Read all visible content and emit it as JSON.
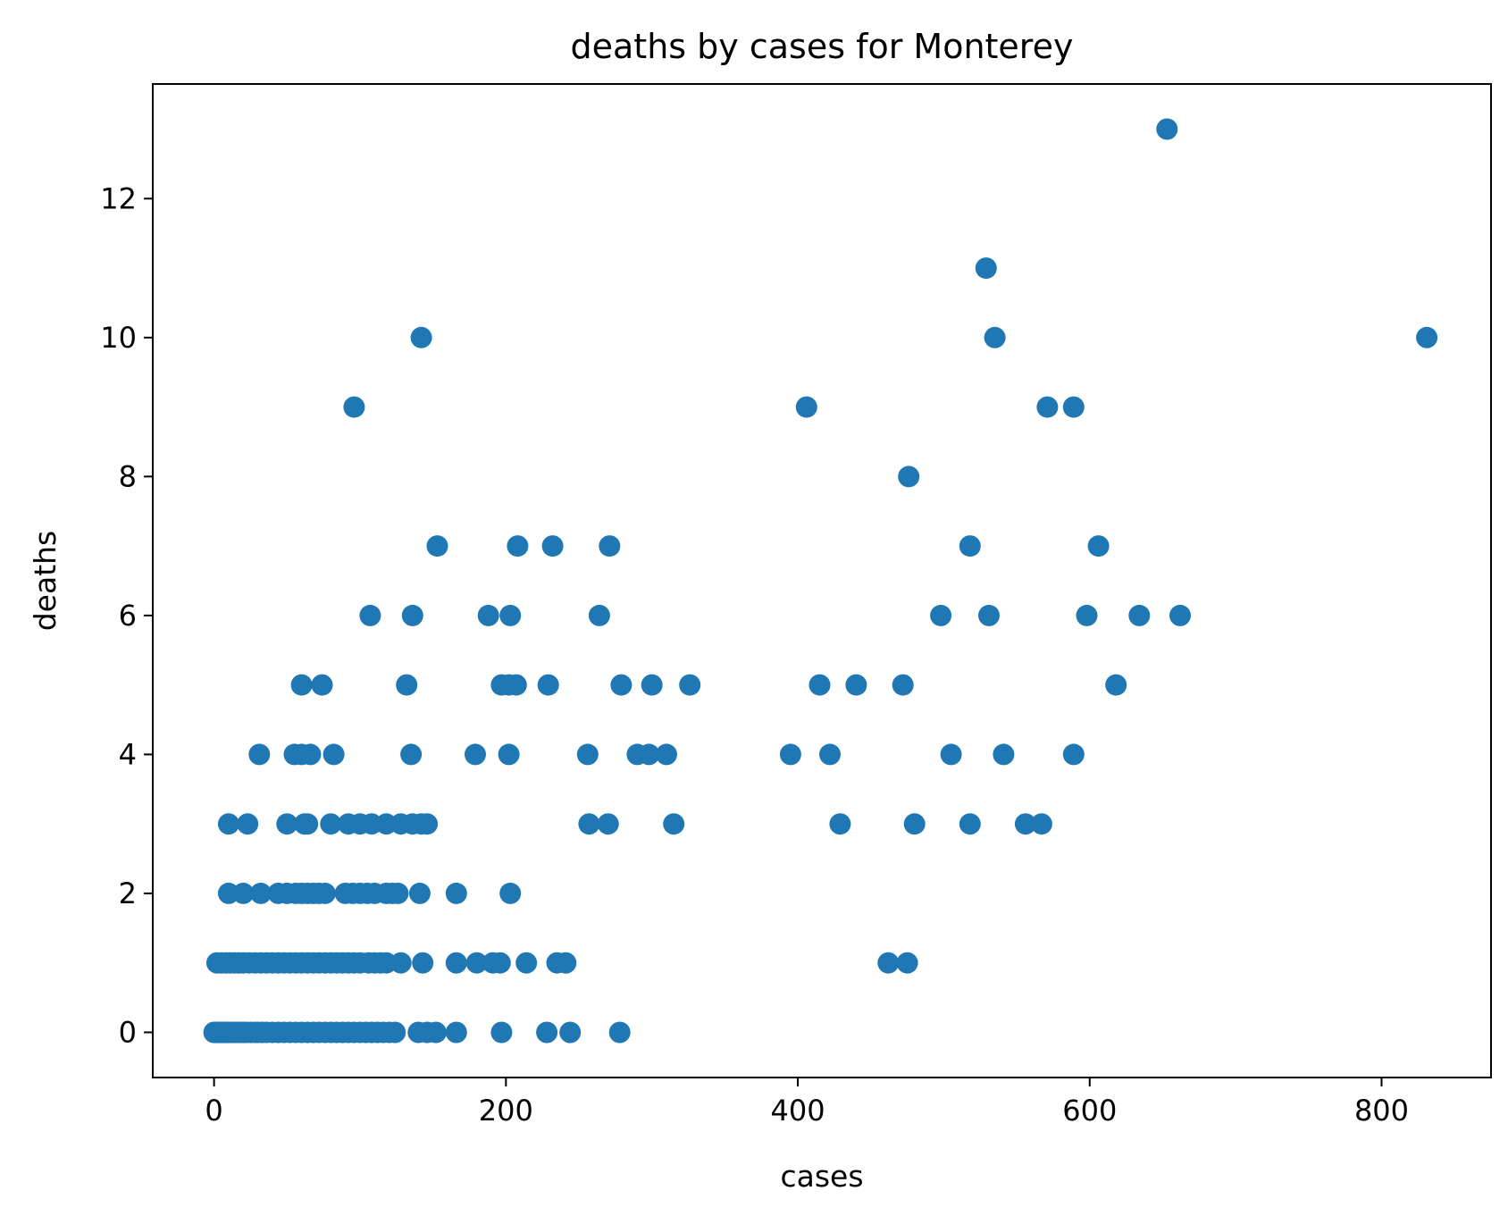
{
  "chart_data": {
    "type": "scatter",
    "title": "deaths by cases for Monterey",
    "xlabel": "cases",
    "ylabel": "deaths",
    "xlim": [
      -42,
      875
    ],
    "ylim": [
      -0.65,
      13.65
    ],
    "xticks": [
      0,
      200,
      400,
      600,
      800
    ],
    "yticks": [
      0,
      2,
      4,
      6,
      8,
      10,
      12
    ],
    "grid": false,
    "color": "#1f77b4",
    "series": [
      {
        "points": [
          [
            0,
            0
          ],
          [
            1,
            0
          ],
          [
            2,
            0
          ],
          [
            3,
            0
          ],
          [
            4,
            0
          ],
          [
            5,
            0
          ],
          [
            6,
            0
          ],
          [
            7,
            0
          ],
          [
            8,
            0
          ],
          [
            10,
            0
          ],
          [
            12,
            0
          ],
          [
            14,
            0
          ],
          [
            16,
            0
          ],
          [
            18,
            0
          ],
          [
            20,
            0
          ],
          [
            22,
            0
          ],
          [
            25,
            0
          ],
          [
            28,
            0
          ],
          [
            30,
            0
          ],
          [
            33,
            0
          ],
          [
            36,
            0
          ],
          [
            40,
            0
          ],
          [
            44,
            0
          ],
          [
            48,
            0
          ],
          [
            52,
            0
          ],
          [
            56,
            0
          ],
          [
            60,
            0
          ],
          [
            64,
            0
          ],
          [
            68,
            0
          ],
          [
            72,
            0
          ],
          [
            76,
            0
          ],
          [
            80,
            0
          ],
          [
            84,
            0
          ],
          [
            88,
            0
          ],
          [
            92,
            0
          ],
          [
            96,
            0
          ],
          [
            100,
            0
          ],
          [
            104,
            0
          ],
          [
            108,
            0
          ],
          [
            112,
            0
          ],
          [
            116,
            0
          ],
          [
            120,
            0
          ],
          [
            124,
            0
          ],
          [
            140,
            0
          ],
          [
            146,
            0
          ],
          [
            152,
            0
          ],
          [
            166,
            0
          ],
          [
            197,
            0
          ],
          [
            228,
            0
          ],
          [
            244,
            0
          ],
          [
            278,
            0
          ],
          [
            2,
            1
          ],
          [
            5,
            1
          ],
          [
            8,
            1
          ],
          [
            11,
            1
          ],
          [
            14,
            1
          ],
          [
            17,
            1
          ],
          [
            20,
            1
          ],
          [
            24,
            1
          ],
          [
            28,
            1
          ],
          [
            32,
            1
          ],
          [
            36,
            1
          ],
          [
            40,
            1
          ],
          [
            44,
            1
          ],
          [
            48,
            1
          ],
          [
            52,
            1
          ],
          [
            56,
            1
          ],
          [
            60,
            1
          ],
          [
            64,
            1
          ],
          [
            68,
            1
          ],
          [
            72,
            1
          ],
          [
            76,
            1
          ],
          [
            80,
            1
          ],
          [
            84,
            1
          ],
          [
            88,
            1
          ],
          [
            92,
            1
          ],
          [
            96,
            1
          ],
          [
            100,
            1
          ],
          [
            106,
            1
          ],
          [
            110,
            1
          ],
          [
            114,
            1
          ],
          [
            118,
            1
          ],
          [
            128,
            1
          ],
          [
            143,
            1
          ],
          [
            166,
            1
          ],
          [
            180,
            1
          ],
          [
            191,
            1
          ],
          [
            196,
            1
          ],
          [
            214,
            1
          ],
          [
            235,
            1
          ],
          [
            241,
            1
          ],
          [
            462,
            1
          ],
          [
            475,
            1
          ],
          [
            10,
            2
          ],
          [
            20,
            2
          ],
          [
            32,
            2
          ],
          [
            44,
            2
          ],
          [
            50,
            2
          ],
          [
            56,
            2
          ],
          [
            60,
            2
          ],
          [
            64,
            2
          ],
          [
            68,
            2
          ],
          [
            72,
            2
          ],
          [
            76,
            2
          ],
          [
            90,
            2
          ],
          [
            95,
            2
          ],
          [
            100,
            2
          ],
          [
            105,
            2
          ],
          [
            110,
            2
          ],
          [
            118,
            2
          ],
          [
            122,
            2
          ],
          [
            126,
            2
          ],
          [
            141,
            2
          ],
          [
            166,
            2
          ],
          [
            203,
            2
          ],
          [
            10,
            3
          ],
          [
            23,
            3
          ],
          [
            50,
            3
          ],
          [
            62,
            3
          ],
          [
            64,
            3
          ],
          [
            80,
            3
          ],
          [
            92,
            3
          ],
          [
            100,
            3
          ],
          [
            108,
            3
          ],
          [
            118,
            3
          ],
          [
            128,
            3
          ],
          [
            136,
            3
          ],
          [
            142,
            3
          ],
          [
            146,
            3
          ],
          [
            257,
            3
          ],
          [
            270,
            3
          ],
          [
            315,
            3
          ],
          [
            429,
            3
          ],
          [
            480,
            3
          ],
          [
            518,
            3
          ],
          [
            556,
            3
          ],
          [
            567,
            3
          ],
          [
            31,
            4
          ],
          [
            55,
            4
          ],
          [
            60,
            4
          ],
          [
            66,
            4
          ],
          [
            82,
            4
          ],
          [
            135,
            4
          ],
          [
            179,
            4
          ],
          [
            202,
            4
          ],
          [
            256,
            4
          ],
          [
            290,
            4
          ],
          [
            298,
            4
          ],
          [
            310,
            4
          ],
          [
            395,
            4
          ],
          [
            422,
            4
          ],
          [
            505,
            4
          ],
          [
            541,
            4
          ],
          [
            589,
            4
          ],
          [
            60,
            5
          ],
          [
            74,
            5
          ],
          [
            132,
            5
          ],
          [
            197,
            5
          ],
          [
            202,
            5
          ],
          [
            207,
            5
          ],
          [
            229,
            5
          ],
          [
            279,
            5
          ],
          [
            300,
            5
          ],
          [
            326,
            5
          ],
          [
            415,
            5
          ],
          [
            440,
            5
          ],
          [
            472,
            5
          ],
          [
            618,
            5
          ],
          [
            107,
            6
          ],
          [
            136,
            6
          ],
          [
            188,
            6
          ],
          [
            203,
            6
          ],
          [
            264,
            6
          ],
          [
            498,
            6
          ],
          [
            531,
            6
          ],
          [
            598,
            6
          ],
          [
            634,
            6
          ],
          [
            662,
            6
          ],
          [
            153,
            7
          ],
          [
            208,
            7
          ],
          [
            232,
            7
          ],
          [
            271,
            7
          ],
          [
            518,
            7
          ],
          [
            606,
            7
          ],
          [
            476,
            8
          ],
          [
            96,
            9
          ],
          [
            406,
            9
          ],
          [
            571,
            9
          ],
          [
            589,
            9
          ],
          [
            142,
            10
          ],
          [
            535,
            10
          ],
          [
            831,
            10
          ],
          [
            529,
            11
          ],
          [
            653,
            13
          ]
        ]
      }
    ]
  }
}
